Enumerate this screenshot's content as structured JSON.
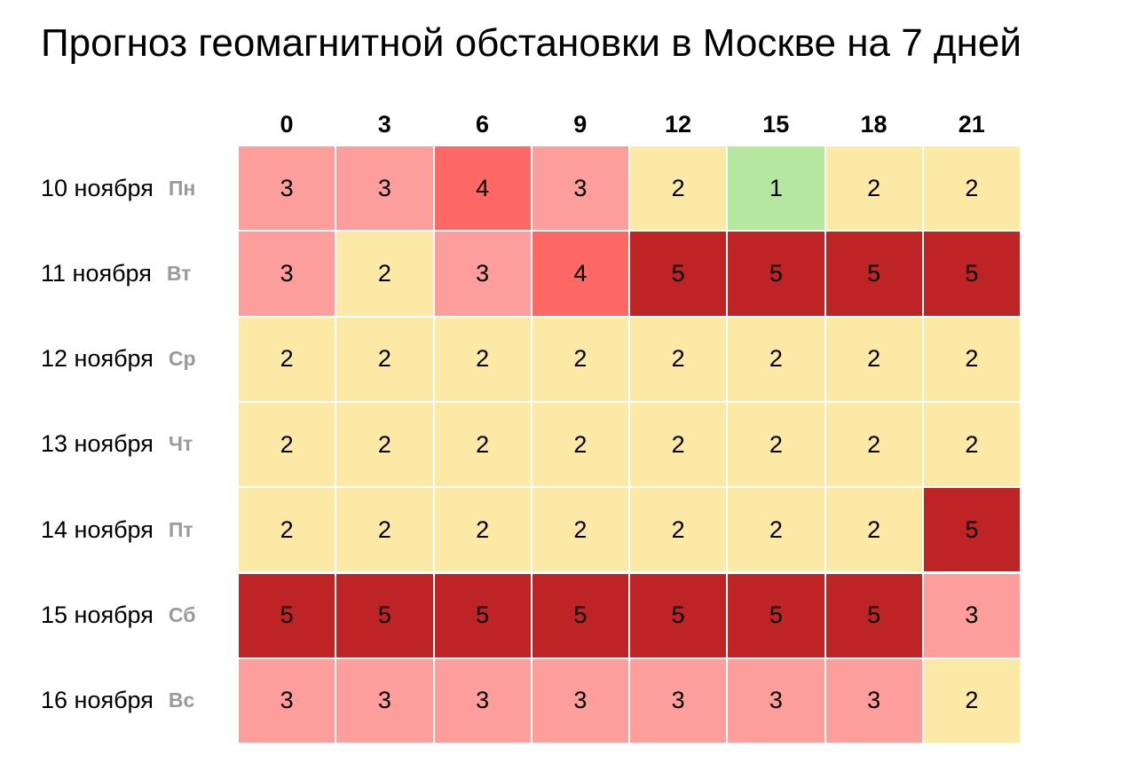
{
  "title": "Прогноз геомагнитной обстановки в Москве на 7 дней",
  "colors": {
    "1": "#b5e7a0",
    "2": "#fde9a6",
    "3": "#fd9e9c",
    "4": "#fd6764",
    "5": "#be2326"
  },
  "chart_data": {
    "type": "heatmap",
    "title": "Прогноз геомагнитной обстановки в Москве на 7 дней",
    "x": [
      "0",
      "3",
      "6",
      "9",
      "12",
      "15",
      "18",
      "21"
    ],
    "rows": [
      {
        "date": "10 ноября",
        "day": "Пн"
      },
      {
        "date": "11 ноября",
        "day": "Вт"
      },
      {
        "date": "12 ноября",
        "day": "Ср"
      },
      {
        "date": "13 ноября",
        "day": "Чт"
      },
      {
        "date": "14 ноября",
        "day": "Пт"
      },
      {
        "date": "15 ноября",
        "day": "Сб"
      },
      {
        "date": "16 ноября",
        "day": "Вс"
      }
    ],
    "values": [
      [
        3,
        3,
        4,
        3,
        2,
        1,
        2,
        2
      ],
      [
        3,
        2,
        3,
        4,
        5,
        5,
        5,
        5
      ],
      [
        2,
        2,
        2,
        2,
        2,
        2,
        2,
        2
      ],
      [
        2,
        2,
        2,
        2,
        2,
        2,
        2,
        2
      ],
      [
        2,
        2,
        2,
        2,
        2,
        2,
        2,
        5
      ],
      [
        5,
        5,
        5,
        5,
        5,
        5,
        5,
        3
      ],
      [
        3,
        3,
        3,
        3,
        3,
        3,
        3,
        2
      ]
    ]
  }
}
